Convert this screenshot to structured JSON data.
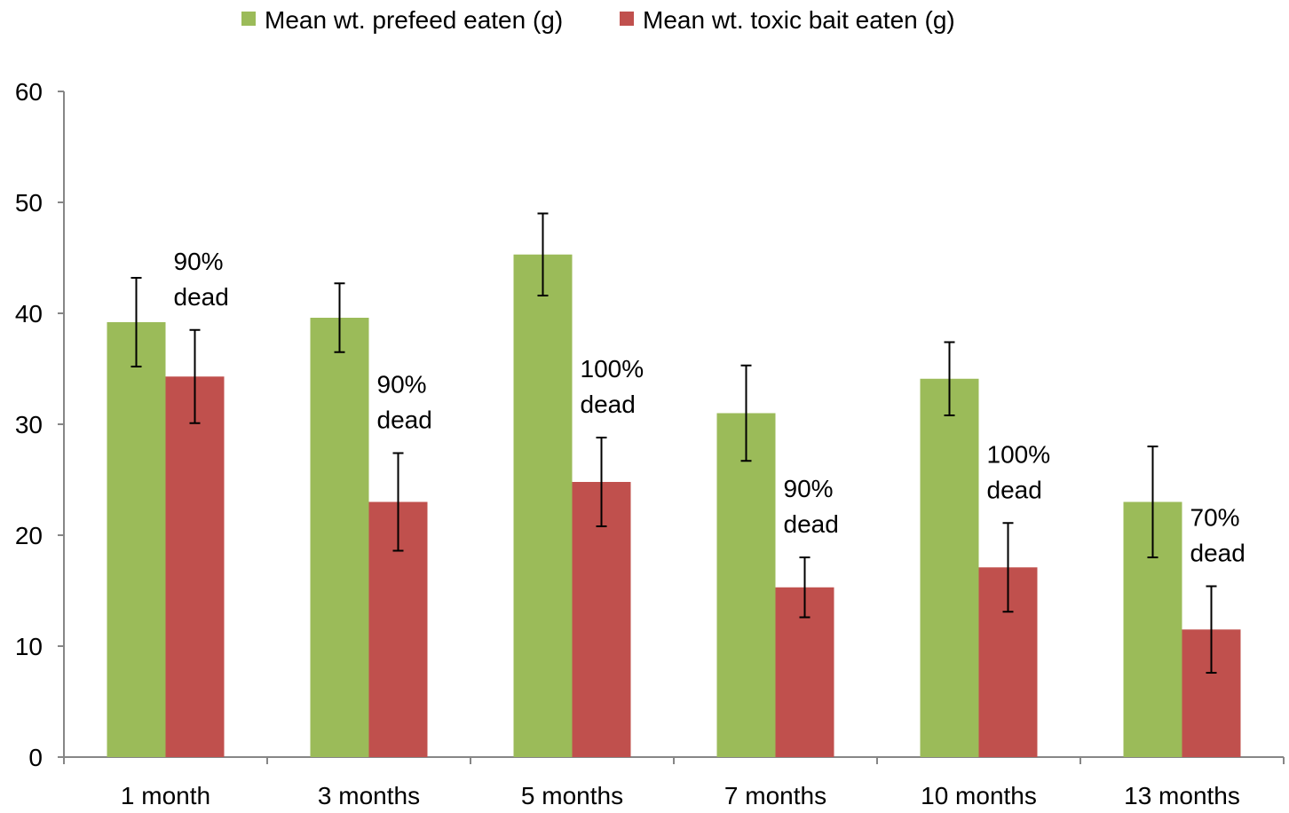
{
  "chart_data": {
    "type": "bar",
    "title": "",
    "xlabel": "",
    "ylabel": "",
    "ylim": [
      0,
      60
    ],
    "yticks": [
      0,
      10,
      20,
      30,
      40,
      50,
      60
    ],
    "grid": false,
    "legend_position": "top",
    "categories": [
      "1 month",
      "3 months",
      "5 months",
      "7 months",
      "10 months",
      "13 months"
    ],
    "series": [
      {
        "name": "Mean wt. prefeed eaten (g)",
        "color": "#9bbb59",
        "values": [
          39.2,
          39.6,
          45.3,
          31.0,
          34.1,
          23.0
        ],
        "error": [
          4.0,
          3.1,
          3.7,
          4.3,
          3.3,
          5.0
        ]
      },
      {
        "name": "Mean wt. toxic bait eaten (g)",
        "color": "#c0504d",
        "values": [
          34.3,
          23.0,
          24.8,
          15.3,
          17.1,
          11.5
        ],
        "error": [
          4.2,
          4.4,
          4.0,
          2.7,
          4.0,
          3.9
        ]
      }
    ],
    "annotations": [
      {
        "category": "1 month",
        "lines": [
          "90%",
          "dead"
        ]
      },
      {
        "category": "3 months",
        "lines": [
          "90%",
          "dead"
        ]
      },
      {
        "category": "5 months",
        "lines": [
          "100%",
          "dead"
        ]
      },
      {
        "category": "7 months",
        "lines": [
          "90%",
          "dead"
        ]
      },
      {
        "category": "10 months",
        "lines": [
          "100%",
          "dead"
        ]
      },
      {
        "category": "13 months",
        "lines": [
          "70%",
          "dead"
        ]
      }
    ]
  }
}
